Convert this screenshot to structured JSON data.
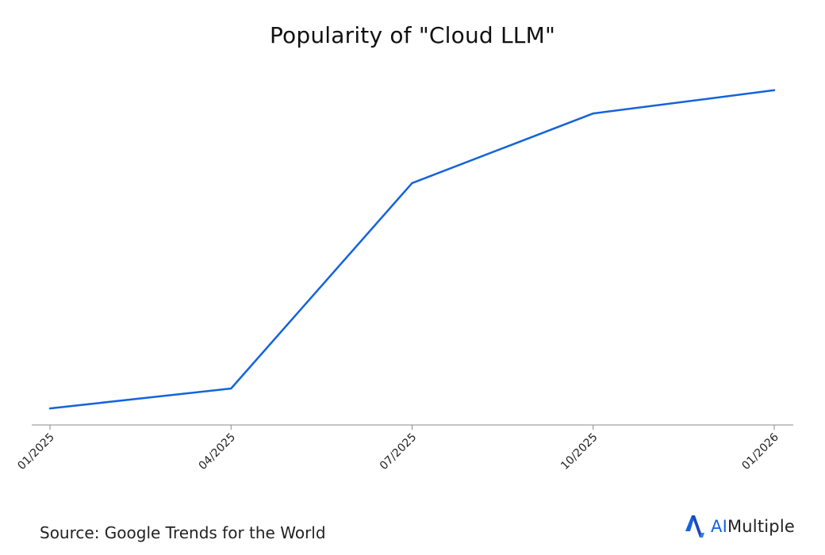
{
  "chart_data": {
    "type": "line",
    "title": "Popularity of \"Cloud LLM\"",
    "xlabel": "",
    "ylabel": "",
    "categories": [
      "01/2025",
      "04/2025",
      "07/2025",
      "10/2025",
      "01/2026"
    ],
    "series": [
      {
        "values": [
          5,
          11,
          73,
          94,
          101
        ]
      }
    ],
    "ylim": [
      0,
      100
    ],
    "grid": false,
    "line_color": "#1463dc",
    "axis_color": "#888888"
  },
  "footer": {
    "source": "Source: Google Trends for the World"
  },
  "brand": {
    "prefix": "AI",
    "suffix": "Multiple",
    "icon": "aimultiple-logo-icon",
    "accent_color": "#1463dc"
  }
}
